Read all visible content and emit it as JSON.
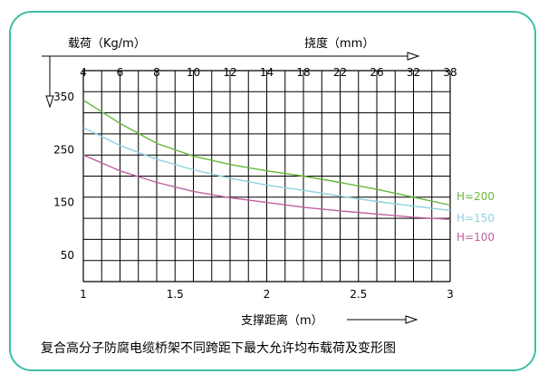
{
  "chart_data": {
    "type": "line",
    "left_axis_title": "载荷（Kg/m）",
    "top_axis_title": "挠度（mm）",
    "xlabel": "支撑距离（m）",
    "caption": "复合高分子防腐电缆桥架不同跨距下最大允许均布载荷及变形图",
    "top_ticks": [
      "4",
      "6",
      "8",
      "10",
      "12",
      "14",
      "18",
      "22",
      "26",
      "32",
      "38"
    ],
    "left_ticks": [
      "350",
      "250",
      "150",
      "50"
    ],
    "bottom_ticks": [
      "1",
      "1.5",
      "2",
      "2.5",
      "3"
    ],
    "xlim": [
      1,
      3
    ],
    "ylim": [
      0,
      400
    ],
    "grid": true,
    "series": [
      {
        "name": "H=200",
        "color": "#66b83a",
        "x": [
          1.0,
          1.2,
          1.4,
          1.6,
          1.8,
          2.0,
          2.2,
          2.4,
          2.6,
          2.8,
          3.0
        ],
        "y": [
          344,
          300,
          262,
          238,
          222,
          210,
          200,
          188,
          175,
          160,
          145
        ]
      },
      {
        "name": "H=150",
        "color": "#8fd0e0",
        "x": [
          1.0,
          1.2,
          1.4,
          1.6,
          1.8,
          2.0,
          2.2,
          2.4,
          2.6,
          2.8,
          3.0
        ],
        "y": [
          292,
          258,
          232,
          212,
          196,
          183,
          173,
          162,
          152,
          143,
          135
        ]
      },
      {
        "name": "H=100",
        "color": "#c060a0",
        "x": [
          1.0,
          1.2,
          1.4,
          1.6,
          1.8,
          2.0,
          2.2,
          2.4,
          2.6,
          2.8,
          3.0
        ],
        "y": [
          240,
          210,
          188,
          171,
          159,
          150,
          141,
          134,
          128,
          122,
          118
        ]
      }
    ]
  }
}
